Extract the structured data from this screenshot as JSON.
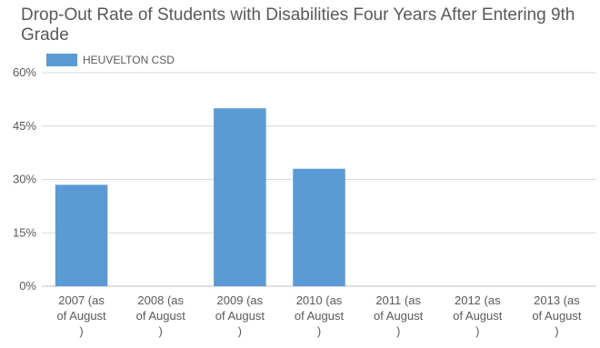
{
  "chart_data": {
    "type": "bar",
    "title": "Drop-Out Rate of Students with Disabilities Four Years After Entering 9th Grade",
    "xlabel": "",
    "ylabel": "",
    "ylim": [
      0,
      60
    ],
    "y_ticks": [
      0,
      15,
      30,
      45,
      60
    ],
    "y_tick_labels": [
      "0%",
      "15%",
      "30%",
      "45%",
      "60%"
    ],
    "grid": true,
    "legend_position": "top-left",
    "categories": [
      [
        "2007 (as",
        "of August",
        ")"
      ],
      [
        "2008 (as",
        "of August",
        ")"
      ],
      [
        "2009 (as",
        "of August",
        ")"
      ],
      [
        "2010 (as",
        "of August",
        ")"
      ],
      [
        "2011 (as",
        "of August",
        ")"
      ],
      [
        "2012 (as",
        "of August",
        ")"
      ],
      [
        "2013 (as",
        "of August",
        ")"
      ]
    ],
    "series": [
      {
        "name": "HEUVELTON CSD",
        "color": "#5b9bd5",
        "values": [
          28.5,
          0,
          50,
          33,
          0,
          0,
          0
        ]
      }
    ]
  }
}
